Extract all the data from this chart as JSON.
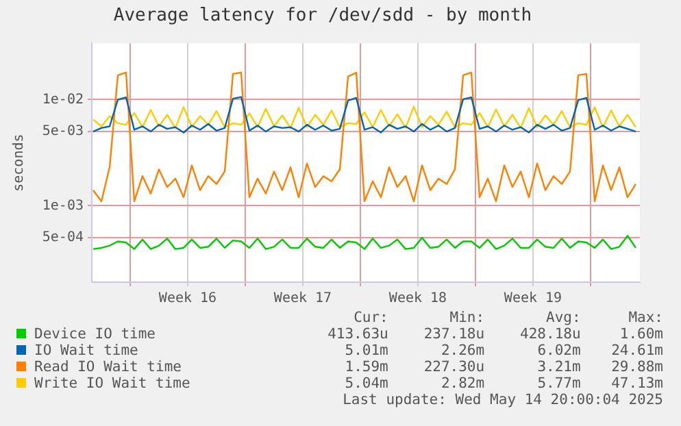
{
  "chart_data": {
    "type": "line",
    "title": "Average latency for /dev/sdd - by month",
    "ylabel": "seconds",
    "log": "y",
    "grid": true,
    "legend": "bottom",
    "marker": "none",
    "line_style": "solid",
    "xlim": [
      "2025-04-11T16:00",
      "2025-05-15T00:00"
    ],
    "xticks": [
      {
        "value": "2025-04-14T00:00",
        "label": null
      },
      {
        "value": "2025-04-17T12:00",
        "label": "Week 16"
      },
      {
        "value": "2025-04-21T00:00",
        "label": null
      },
      {
        "value": "2025-04-24T12:00",
        "label": "Week 17"
      },
      {
        "value": "2025-04-28T00:00",
        "label": null
      },
      {
        "value": "2025-05-01T12:00",
        "label": "Week 18"
      },
      {
        "value": "2025-05-05T00:00",
        "label": null
      },
      {
        "value": "2025-05-08T12:00",
        "label": "Week 19"
      },
      {
        "value": "2025-05-12T00:00",
        "label": null
      }
    ],
    "ylim": [
      0.00019,
      0.034
    ],
    "yticks": [
      {
        "value": 0.0005,
        "label": "5e-04"
      },
      {
        "value": 0.001,
        "label": "1e-03"
      },
      {
        "value": 0.005,
        "label": "5e-03"
      },
      {
        "value": 0.01,
        "label": "1e-02"
      }
    ],
    "x": [
      "2025-04-11T18:00",
      "2025-04-12T06:00",
      "2025-04-12T18:00",
      "2025-04-13T06:00",
      "2025-04-13T18:00",
      "2025-04-14T06:00",
      "2025-04-14T18:00",
      "2025-04-15T06:00",
      "2025-04-15T18:00",
      "2025-04-16T06:00",
      "2025-04-16T18:00",
      "2025-04-17T06:00",
      "2025-04-17T18:00",
      "2025-04-18T06:00",
      "2025-04-18T18:00",
      "2025-04-19T06:00",
      "2025-04-19T18:00",
      "2025-04-20T06:00",
      "2025-04-20T18:00",
      "2025-04-21T06:00",
      "2025-04-21T18:00",
      "2025-04-22T06:00",
      "2025-04-22T18:00",
      "2025-04-23T06:00",
      "2025-04-23T18:00",
      "2025-04-24T06:00",
      "2025-04-24T18:00",
      "2025-04-25T06:00",
      "2025-04-25T18:00",
      "2025-04-26T06:00",
      "2025-04-26T18:00",
      "2025-04-27T06:00",
      "2025-04-27T18:00",
      "2025-04-28T06:00",
      "2025-04-28T18:00",
      "2025-04-29T06:00",
      "2025-04-29T18:00",
      "2025-04-30T06:00",
      "2025-04-30T18:00",
      "2025-05-01T06:00",
      "2025-05-01T18:00",
      "2025-05-02T06:00",
      "2025-05-02T18:00",
      "2025-05-03T06:00",
      "2025-05-03T18:00",
      "2025-05-04T06:00",
      "2025-05-04T18:00",
      "2025-05-05T06:00",
      "2025-05-05T18:00",
      "2025-05-06T06:00",
      "2025-05-06T18:00",
      "2025-05-07T06:00",
      "2025-05-07T18:00",
      "2025-05-08T06:00",
      "2025-05-08T18:00",
      "2025-05-09T06:00",
      "2025-05-09T18:00",
      "2025-05-10T06:00",
      "2025-05-10T18:00",
      "2025-05-11T06:00",
      "2025-05-11T18:00",
      "2025-05-12T06:00",
      "2025-05-12T18:00",
      "2025-05-13T06:00",
      "2025-05-13T18:00",
      "2025-05-14T06:00",
      "2025-05-14T18:00"
    ],
    "series": [
      {
        "name": "Device IO time",
        "color": "#00cc00",
        "values": [
          0.00039,
          0.0004,
          0.00042,
          0.00046,
          0.00045,
          0.00039,
          0.00048,
          0.00039,
          0.00042,
          0.00049,
          0.00039,
          0.0004,
          0.00048,
          0.0004,
          0.00041,
          0.00049,
          0.0004,
          0.00047,
          0.00046,
          0.0004,
          0.00049,
          0.00039,
          0.00041,
          0.00048,
          0.0004,
          0.0004,
          0.00049,
          0.00041,
          0.0004,
          0.00048,
          0.0004,
          0.00046,
          0.00045,
          0.00039,
          0.00049,
          0.0004,
          0.00042,
          0.00048,
          0.00039,
          0.0004,
          0.0005,
          0.0004,
          0.00041,
          0.00048,
          0.0004,
          0.00046,
          0.00046,
          0.0004,
          0.00048,
          0.00039,
          0.00042,
          0.00049,
          0.0004,
          0.0004,
          0.00048,
          0.00041,
          0.0004,
          0.00049,
          0.0004,
          0.00046,
          0.00045,
          0.0004,
          0.00048,
          0.00039,
          0.00041,
          0.00052,
          0.0004
        ]
      },
      {
        "name": "IO Wait time",
        "color": "#0066b3",
        "values": [
          0.005,
          0.0054,
          0.0056,
          0.01,
          0.0105,
          0.0052,
          0.0056,
          0.005,
          0.0058,
          0.0053,
          0.0055,
          0.0049,
          0.0057,
          0.0052,
          0.0059,
          0.0051,
          0.0054,
          0.0102,
          0.0106,
          0.0051,
          0.0057,
          0.005,
          0.0056,
          0.0054,
          0.0055,
          0.005,
          0.0058,
          0.0052,
          0.0057,
          0.0051,
          0.0053,
          0.0098,
          0.0104,
          0.0052,
          0.0055,
          0.0049,
          0.0058,
          0.0053,
          0.0056,
          0.005,
          0.0059,
          0.0052,
          0.0057,
          0.005,
          0.0054,
          0.0101,
          0.0105,
          0.0053,
          0.0056,
          0.005,
          0.0057,
          0.0052,
          0.0055,
          0.0049,
          0.0058,
          0.0053,
          0.0058,
          0.0051,
          0.0054,
          0.0099,
          0.0104,
          0.0052,
          0.0057,
          0.0051,
          0.0056,
          0.0053,
          0.005
        ]
      },
      {
        "name": "Read IO Wait time",
        "color": "#ff8000",
        "values": [
          0.0014,
          0.0011,
          0.0023,
          0.017,
          0.018,
          0.0011,
          0.0019,
          0.0013,
          0.0022,
          0.0015,
          0.0018,
          0.0012,
          0.0024,
          0.0014,
          0.0019,
          0.0016,
          0.0021,
          0.0175,
          0.018,
          0.0012,
          0.0018,
          0.0013,
          0.0021,
          0.0014,
          0.0023,
          0.0012,
          0.0025,
          0.0015,
          0.0019,
          0.0017,
          0.0022,
          0.0165,
          0.018,
          0.0011,
          0.0017,
          0.0012,
          0.0023,
          0.0015,
          0.0019,
          0.0011,
          0.0024,
          0.0014,
          0.0018,
          0.0016,
          0.0022,
          0.017,
          0.018,
          0.0012,
          0.0018,
          0.0011,
          0.0024,
          0.0015,
          0.0021,
          0.0012,
          0.0025,
          0.0014,
          0.0019,
          0.0016,
          0.0021,
          0.017,
          0.0175,
          0.0011,
          0.0024,
          0.0014,
          0.0023,
          0.0012,
          0.0016
        ]
      },
      {
        "name": "Write IO Wait time",
        "color": "#ffcc00",
        "values": [
          0.0065,
          0.0056,
          0.007,
          0.006,
          0.0058,
          0.0075,
          0.0055,
          0.008,
          0.0056,
          0.0072,
          0.0054,
          0.0085,
          0.0055,
          0.007,
          0.0058,
          0.0078,
          0.0055,
          0.006,
          0.0058,
          0.0074,
          0.0055,
          0.0082,
          0.0056,
          0.0071,
          0.0054,
          0.0084,
          0.0055,
          0.0072,
          0.0058,
          0.0079,
          0.0055,
          0.006,
          0.0059,
          0.0076,
          0.0055,
          0.008,
          0.0056,
          0.0073,
          0.0054,
          0.0086,
          0.0055,
          0.007,
          0.0058,
          0.0077,
          0.0055,
          0.006,
          0.0058,
          0.0075,
          0.0055,
          0.0081,
          0.0056,
          0.0072,
          0.0054,
          0.0083,
          0.0055,
          0.0071,
          0.0058,
          0.0078,
          0.0055,
          0.006,
          0.0058,
          0.0085,
          0.0055,
          0.0079,
          0.0056,
          0.0072,
          0.0055
        ]
      }
    ],
    "annotations": [
      "Cur:",
      "Min:",
      "Avg:",
      "Max:",
      "413.63u",
      "237.18u",
      "428.18u",
      "1.60m",
      "5.01m",
      "2.26m",
      "6.02m",
      "24.61m",
      "1.59m",
      "227.30u",
      "3.21m",
      "29.88m",
      "5.04m",
      "2.82m",
      "5.77m",
      "47.13m",
      "Last update: Wed May 14 20:00:04 2025"
    ]
  }
}
